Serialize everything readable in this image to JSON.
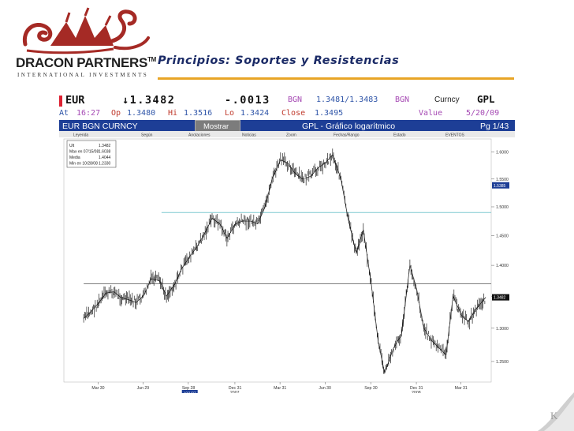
{
  "logo": {
    "brand": "DRACON PARTNERS",
    "tm": "TM",
    "subtitle": "INTERNATIONAL INVESTMENTS"
  },
  "slide": {
    "title": "Principios: Soportes y Resistencias"
  },
  "colors": {
    "accent_orange": "#e8a526",
    "title_navy": "#1a2a66",
    "bloomberg_blue": "#1d3e96",
    "logo_red": "#a52a25"
  },
  "terminal": {
    "ticker": "EUR",
    "last": "↓1.3482",
    "change": "-.0013",
    "source1": "BGN",
    "bid_ask": "1.3481/1.3483",
    "source2": "BGN",
    "curncy": "Curncy",
    "gpl": "GPL",
    "at_label": "At",
    "at_time": "16:27",
    "op_label": "Op",
    "op": "1.3480",
    "hi_label": "Hi",
    "hi": "1.3516",
    "lo_label": "Lo",
    "lo": "1.3424",
    "close_label": "Close",
    "close": "1.3495",
    "value_label": "Value",
    "value_date": "5/20/09",
    "security": "EUR BGN CURNCY",
    "mostrar": "Mostrar",
    "chart_title": "GPL - Gráfico logarítmico",
    "page": "Pg 1/43"
  },
  "chart_toolbar": [
    "Leyenda",
    "Según",
    "Anotaciones",
    "Noticias",
    "Zoom",
    "Fechas/Rango",
    "Estado",
    "EVENTOS"
  ],
  "legend_box": {
    "rows": [
      {
        "label": "Ult",
        "value": "1.3482"
      },
      {
        "label": "Max en 07/15/08",
        "value": "1.6038"
      },
      {
        "label": "Media",
        "value": "1.4044"
      },
      {
        "label": "Min en 10/28/08",
        "value": "1.2330"
      }
    ]
  },
  "chart_data": {
    "type": "line",
    "title": "GPL - Gráfico logarítmico",
    "series": [
      {
        "name": "EUR BGN CURNCY",
        "x": [
          "2007-03-01",
          "2007-03-15",
          "2007-04-01",
          "2007-04-15",
          "2007-05-01",
          "2007-05-15",
          "2007-06-01",
          "2007-06-15",
          "2007-07-01",
          "2007-07-15",
          "2007-08-01",
          "2007-08-15",
          "2007-09-01",
          "2007-09-15",
          "2007-10-01",
          "2007-10-15",
          "2007-11-01",
          "2007-11-15",
          "2007-12-01",
          "2007-12-15",
          "2008-01-01",
          "2008-01-15",
          "2008-02-01",
          "2008-02-15",
          "2008-03-01",
          "2008-03-15",
          "2008-04-01",
          "2008-04-15",
          "2008-05-01",
          "2008-05-15",
          "2008-06-01",
          "2008-06-15",
          "2008-07-01",
          "2008-07-15",
          "2008-08-01",
          "2008-08-15",
          "2008-09-01",
          "2008-09-15",
          "2008-10-01",
          "2008-10-15",
          "2008-10-28",
          "2008-11-15",
          "2008-12-01",
          "2008-12-18",
          "2009-01-01",
          "2009-01-15",
          "2009-02-01",
          "2009-02-15",
          "2009-03-01",
          "2009-03-15",
          "2009-04-01",
          "2009-04-15",
          "2009-05-01",
          "2009-05-20"
        ],
        "values": [
          1.315,
          1.325,
          1.34,
          1.355,
          1.357,
          1.348,
          1.344,
          1.34,
          1.352,
          1.378,
          1.375,
          1.35,
          1.37,
          1.395,
          1.415,
          1.43,
          1.455,
          1.48,
          1.47,
          1.445,
          1.47,
          1.475,
          1.475,
          1.47,
          1.5,
          1.55,
          1.585,
          1.58,
          1.56,
          1.55,
          1.555,
          1.57,
          1.58,
          1.595,
          1.55,
          1.48,
          1.42,
          1.46,
          1.37,
          1.28,
          1.233,
          1.27,
          1.29,
          1.4,
          1.36,
          1.3,
          1.28,
          1.27,
          1.26,
          1.35,
          1.32,
          1.31,
          1.33,
          1.3482
        ]
      }
    ],
    "xtick_labels": [
      "Mar 30",
      "Jun 29",
      "Sep 28",
      "Dec 31",
      "Mar 31",
      "Jun 30",
      "Sep 30",
      "Dec 31",
      "Mar 31"
    ],
    "year_labels": [
      "2007",
      "2008"
    ],
    "date_box_label": "10/1/07",
    "y_scale": "log",
    "ylim": [
      1.22,
      1.625
    ],
    "yticks": [
      1.25,
      1.3,
      1.35,
      1.4,
      1.45,
      1.5,
      1.55,
      1.6
    ],
    "ytick_labels": [
      "1.2500",
      "1.3000",
      "1.3500",
      "1.4000",
      "1.4500",
      "1.5000",
      "1.5500",
      "1.6000"
    ],
    "last_marker": "1.3482",
    "high_marker": "1.5385",
    "resistance_level": 1.49,
    "support_level": 1.37,
    "grid": false,
    "legend": "top-left"
  }
}
